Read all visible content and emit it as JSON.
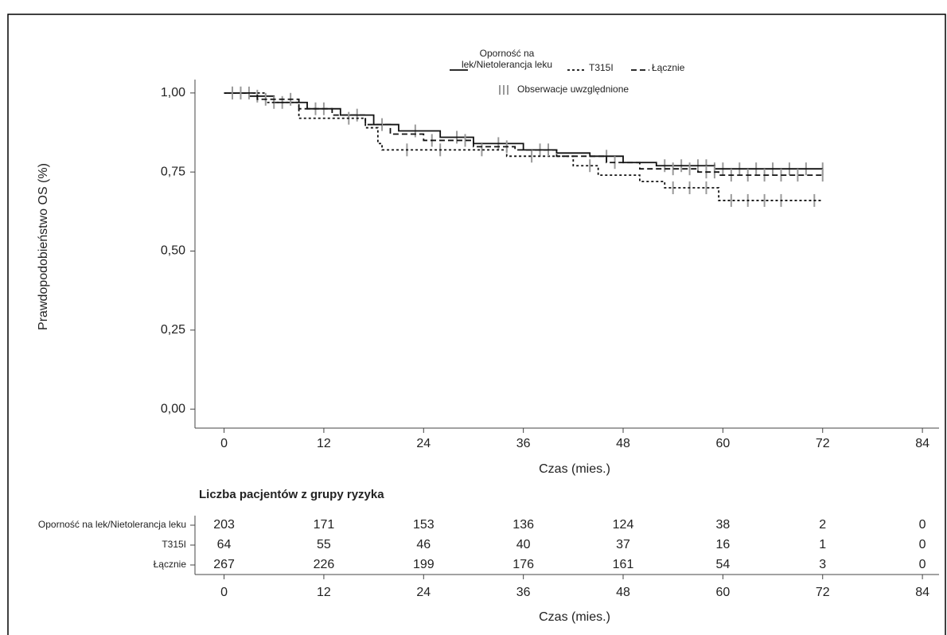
{
  "chart_data": {
    "type": "km",
    "y_label": "Prawdopodobieństwo OS (%)",
    "x_label": "Czas (mies.)",
    "xlim": [
      -3.5,
      86
    ],
    "ylim": [
      -0.06,
      1.06
    ],
    "xticks": [
      0,
      12,
      24,
      36,
      48,
      60,
      72,
      84
    ],
    "yticks": [
      {
        "value": 0,
        "label": "0,00"
      },
      {
        "value": 0.25,
        "label": "0,25"
      },
      {
        "value": 0.5,
        "label": "0,50"
      },
      {
        "value": 0.75,
        "label": "0,75"
      },
      {
        "value": 1,
        "label": "1,00"
      }
    ],
    "censor_label": "Obserwacje uwzględnione",
    "censor_color": "#9a9a9a",
    "series": [
      {
        "name": "Oporność na lek/Nietolerancja leku",
        "color": "#111111",
        "dash": "solid",
        "x": [
          0,
          3,
          6,
          10,
          14,
          18,
          21,
          26,
          30,
          36,
          40,
          44,
          48,
          52,
          59,
          72
        ],
        "values": [
          1,
          0.99,
          0.97,
          0.95,
          0.93,
          0.9,
          0.88,
          0.86,
          0.84,
          0.82,
          0.81,
          0.8,
          0.78,
          0.77,
          0.76,
          0.76
        ],
        "censored": [
          1,
          2,
          4,
          7,
          11,
          16,
          23,
          28,
          33,
          38,
          46,
          53,
          55,
          57,
          58,
          59,
          60,
          62,
          64,
          66,
          68,
          70,
          72
        ],
        "at_risk": [
          203,
          171,
          153,
          136,
          124,
          38,
          2,
          0
        ]
      },
      {
        "name": "T315I",
        "color": "#111111",
        "dash": "dotted",
        "x": [
          0,
          5,
          9,
          17,
          18.5,
          19,
          34,
          42,
          45,
          50,
          53,
          59.5,
          72
        ],
        "values": [
          1,
          0.97,
          0.92,
          0.89,
          0.84,
          0.82,
          0.8,
          0.77,
          0.74,
          0.72,
          0.7,
          0.66,
          0.66
        ],
        "censored": [
          1,
          3,
          6,
          15,
          22,
          26,
          31,
          37,
          44,
          54,
          56,
          58,
          61,
          63,
          65,
          67,
          71
        ],
        "at_risk": [
          64,
          55,
          46,
          40,
          37,
          16,
          1,
          0
        ]
      },
      {
        "name": "Łącznie",
        "color": "#111111",
        "dash": "dashed",
        "x": [
          0,
          4,
          9,
          13,
          17,
          20,
          24,
          30,
          35,
          40,
          46,
          50,
          57,
          59.5,
          72
        ],
        "values": [
          1,
          0.98,
          0.95,
          0.93,
          0.9,
          0.87,
          0.85,
          0.83,
          0.82,
          0.8,
          0.78,
          0.76,
          0.75,
          0.74,
          0.74
        ],
        "censored": [
          2,
          5,
          8,
          12,
          19,
          25,
          29,
          34,
          39,
          47,
          54,
          56,
          58,
          59,
          61,
          63,
          65,
          67,
          69,
          72
        ],
        "at_risk": [
          267,
          226,
          199,
          176,
          161,
          54,
          3,
          0
        ]
      }
    ],
    "risk_table": {
      "title": "Liczba pacjentów z grupy ryzyka"
    }
  }
}
